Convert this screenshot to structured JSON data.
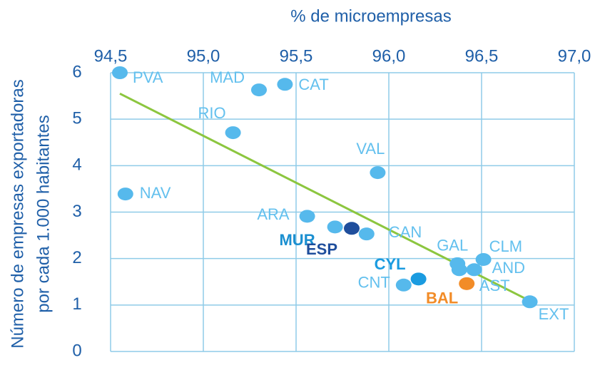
{
  "chart_data": {
    "type": "scatter",
    "x_label": "% de microempresas",
    "y_label": [
      "Número de empresas exportadoras",
      "por cada 1.000 habitantes"
    ],
    "xlim": [
      94.5,
      97.0
    ],
    "ylim": [
      0,
      6
    ],
    "xticks": [
      {
        "value": 94.5,
        "label": "94,5"
      },
      {
        "value": 95.0,
        "label": "95,0"
      },
      {
        "value": 95.5,
        "label": "95,5"
      },
      {
        "value": 96.0,
        "label": "96,0"
      },
      {
        "value": 96.5,
        "label": "96,5"
      },
      {
        "value": 97.0,
        "label": "97,0"
      }
    ],
    "yticks": [
      0,
      1,
      2,
      3,
      4,
      5,
      6
    ],
    "grid": true,
    "points": [
      {
        "label": "PVA",
        "x": 94.55,
        "y": 6.0,
        "color": "#56b9ec",
        "label_color": "#63c0ee",
        "bold": false
      },
      {
        "label": "NAV",
        "x": 94.58,
        "y": 3.39,
        "color": "#56b9ec",
        "label_color": "#63c0ee",
        "bold": false
      },
      {
        "label": "MAD",
        "x": 95.3,
        "y": 5.63,
        "color": "#56b9ec",
        "label_color": "#63c0ee",
        "bold": false
      },
      {
        "label": "CAT",
        "x": 95.44,
        "y": 5.75,
        "color": "#56b9ec",
        "label_color": "#63c0ee",
        "bold": false
      },
      {
        "label": "RIO",
        "x": 95.16,
        "y": 4.71,
        "color": "#56b9ec",
        "label_color": "#63c0ee",
        "bold": false
      },
      {
        "label": "VAL",
        "x": 95.94,
        "y": 3.85,
        "color": "#56b9ec",
        "label_color": "#63c0ee",
        "bold": false
      },
      {
        "label": "ARA",
        "x": 95.56,
        "y": 2.91,
        "color": "#56b9ec",
        "label_color": "#63c0ee",
        "bold": false
      },
      {
        "label": "MUR",
        "x": 95.71,
        "y": 2.68,
        "color": "#56b9ec",
        "label_color": "#1a8fd0",
        "bold": true
      },
      {
        "label": "ESP",
        "x": 95.8,
        "y": 2.65,
        "color": "#1f4e9c",
        "label_color": "#1f4e9c",
        "bold": true
      },
      {
        "label": "CAN",
        "x": 95.88,
        "y": 2.53,
        "color": "#56b9ec",
        "label_color": "#63c0ee",
        "bold": false
      },
      {
        "label": "CNT",
        "x": 96.08,
        "y": 1.43,
        "color": "#56b9ec",
        "label_color": "#63c0ee",
        "bold": false
      },
      {
        "label": "CYL",
        "x": 96.16,
        "y": 1.56,
        "color": "#1a9be0",
        "label_color": "#1a9be0",
        "bold": true
      },
      {
        "label": "GAL",
        "x": 96.37,
        "y": 1.89,
        "color": "#56b9ec",
        "label_color": "#63c0ee",
        "bold": false
      },
      {
        "label": "CLM",
        "x": 96.51,
        "y": 1.98,
        "color": "#56b9ec",
        "label_color": "#63c0ee",
        "bold": false
      },
      {
        "label": "AND",
        "x": 96.46,
        "y": 1.76,
        "color": "#56b9ec",
        "label_color": "#63c0ee",
        "bold": false
      },
      {
        "label": "AST",
        "x": 96.38,
        "y": 1.76,
        "color": "#56b9ec",
        "label_color": "#63c0ee",
        "bold": false
      },
      {
        "label": "BAL",
        "x": 96.42,
        "y": 1.46,
        "color": "#f28c28",
        "label_color": "#f28c28",
        "bold": true
      },
      {
        "label": "EXT",
        "x": 96.76,
        "y": 1.07,
        "color": "#56b9ec",
        "label_color": "#63c0ee",
        "bold": false
      }
    ],
    "trendline": {
      "x": [
        94.55,
        96.76
      ],
      "y": [
        5.55,
        1.09
      ],
      "color": "#8cc63f"
    }
  }
}
